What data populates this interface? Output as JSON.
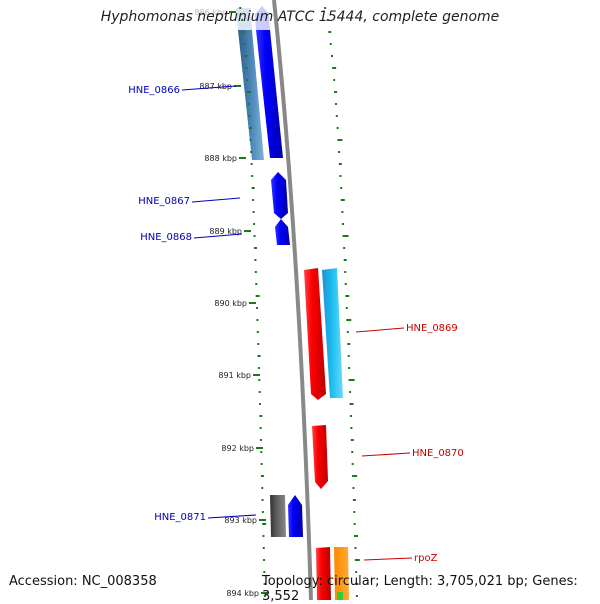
{
  "title": "Hyphomonas neptunium ATCC 15444, complete genome",
  "footer": {
    "accession": "Accession: NC_008358",
    "summary": "Topology: circular; Length: 3,705,021 bp; Genes: 3,552"
  },
  "ticks": [
    "886 kbp",
    "887 kbp",
    "888 kbp",
    "889 kbp",
    "890 kbp",
    "891 kbp",
    "892 kbp",
    "893 kbp",
    "894 kbp"
  ],
  "genes_left": [
    {
      "name": "HNE_0866",
      "color": "#0000bb"
    },
    {
      "name": "HNE_0867",
      "color": "#0000bb"
    },
    {
      "name": "HNE_0868",
      "color": "#0000bb"
    },
    {
      "name": "HNE_0871",
      "color": "#0000bb"
    }
  ],
  "genes_right": [
    {
      "name": "HNE_0869",
      "color": "#cc0000"
    },
    {
      "name": "HNE_0870",
      "color": "#cc0000"
    },
    {
      "name": "rpoZ",
      "color": "#cc0000"
    }
  ],
  "colors": {
    "forward_cds": "#0000ff",
    "reverse_cds": "#ff0000",
    "rna_left": "#4682b4",
    "rna_right": "#1eb4e6",
    "dark_feature": "#555555",
    "orange_feature": "#ff9900",
    "green_feature": "#33cc33",
    "backbone": "#888888",
    "gc_marks": "#1a7a1a"
  }
}
